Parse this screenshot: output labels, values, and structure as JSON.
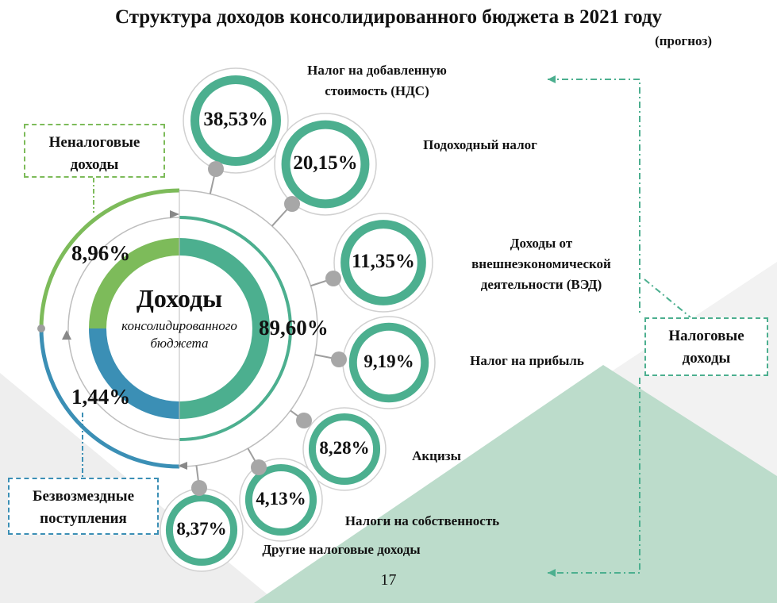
{
  "title": "Структура доходов консолидированного бюджета в 2021 году",
  "subtitle": "(прогноз)",
  "center": {
    "title": "Доходы",
    "subtitle_line1": "консолидированного",
    "subtitle_line2": "бюджета"
  },
  "groups": {
    "tax": {
      "label_line1": "Налоговые",
      "label_line2": "доходы",
      "value": "89,60%",
      "share": 89.6,
      "color": "#4caf8f"
    },
    "nontax": {
      "label_line1": "Неналоговые",
      "label_line2": "доходы",
      "value": "8,96%",
      "share": 8.96,
      "color": "#7dbb5a"
    },
    "gratuitous": {
      "label_line1": "Безвозмездные",
      "label_line2": "поступления",
      "value": "1,44%",
      "share": 1.44,
      "color": "#3b8fb5"
    }
  },
  "chart_data": {
    "type": "diagram",
    "title": "Структура доходов консолидированного бюджета в 2021 году",
    "subtitle": "(прогноз)",
    "groups": [
      {
        "name": "Налоговые доходы",
        "value": 89.6
      },
      {
        "name": "Неналоговые доходы",
        "value": 8.96
      },
      {
        "name": "Безвозмездные поступления",
        "value": 1.44
      }
    ],
    "tax_breakdown": [
      {
        "name": "Налог на добавленную стоимость (НДС)",
        "value": 38.53
      },
      {
        "name": "Подоходный налог",
        "value": 20.15
      },
      {
        "name": "Доходы от внешнеэкономической деятельности (ВЭД)",
        "value": 11.35
      },
      {
        "name": "Налог на прибыль",
        "value": 9.19
      },
      {
        "name": "Акцизы",
        "value": 8.28
      },
      {
        "name": "Налоги на собственность",
        "value": 4.13
      },
      {
        "name": "Другие налоговые доходы",
        "value": 8.37
      }
    ]
  },
  "items": [
    {
      "value": "38,53%",
      "label_line1": "Налог на добавленную",
      "label_line2": "стоимость (НДС)",
      "label_line3": ""
    },
    {
      "value": "20,15%",
      "label_line1": "Подоходный налог",
      "label_line2": "",
      "label_line3": ""
    },
    {
      "value": "11,35%",
      "label_line1": "Доходы от",
      "label_line2": "внешнеэкономической",
      "label_line3": "деятельности (ВЭД)"
    },
    {
      "value": "9,19%",
      "label_line1": "Налог на прибыль",
      "label_line2": "",
      "label_line3": ""
    },
    {
      "value": "8,28%",
      "label_line1": "Акцизы",
      "label_line2": "",
      "label_line3": ""
    },
    {
      "value": "4,13%",
      "label_line1": "Налоги на собственность",
      "label_line2": "",
      "label_line3": ""
    },
    {
      "value": "8,37%",
      "label_line1": "Другие налоговые доходы",
      "label_line2": "",
      "label_line3": ""
    }
  ],
  "page_number": "17",
  "colors": {
    "tax": "#4caf8f",
    "nontax": "#7dbb5a",
    "gratuitous": "#3b8fb5",
    "connector": "#9e9e9e"
  }
}
